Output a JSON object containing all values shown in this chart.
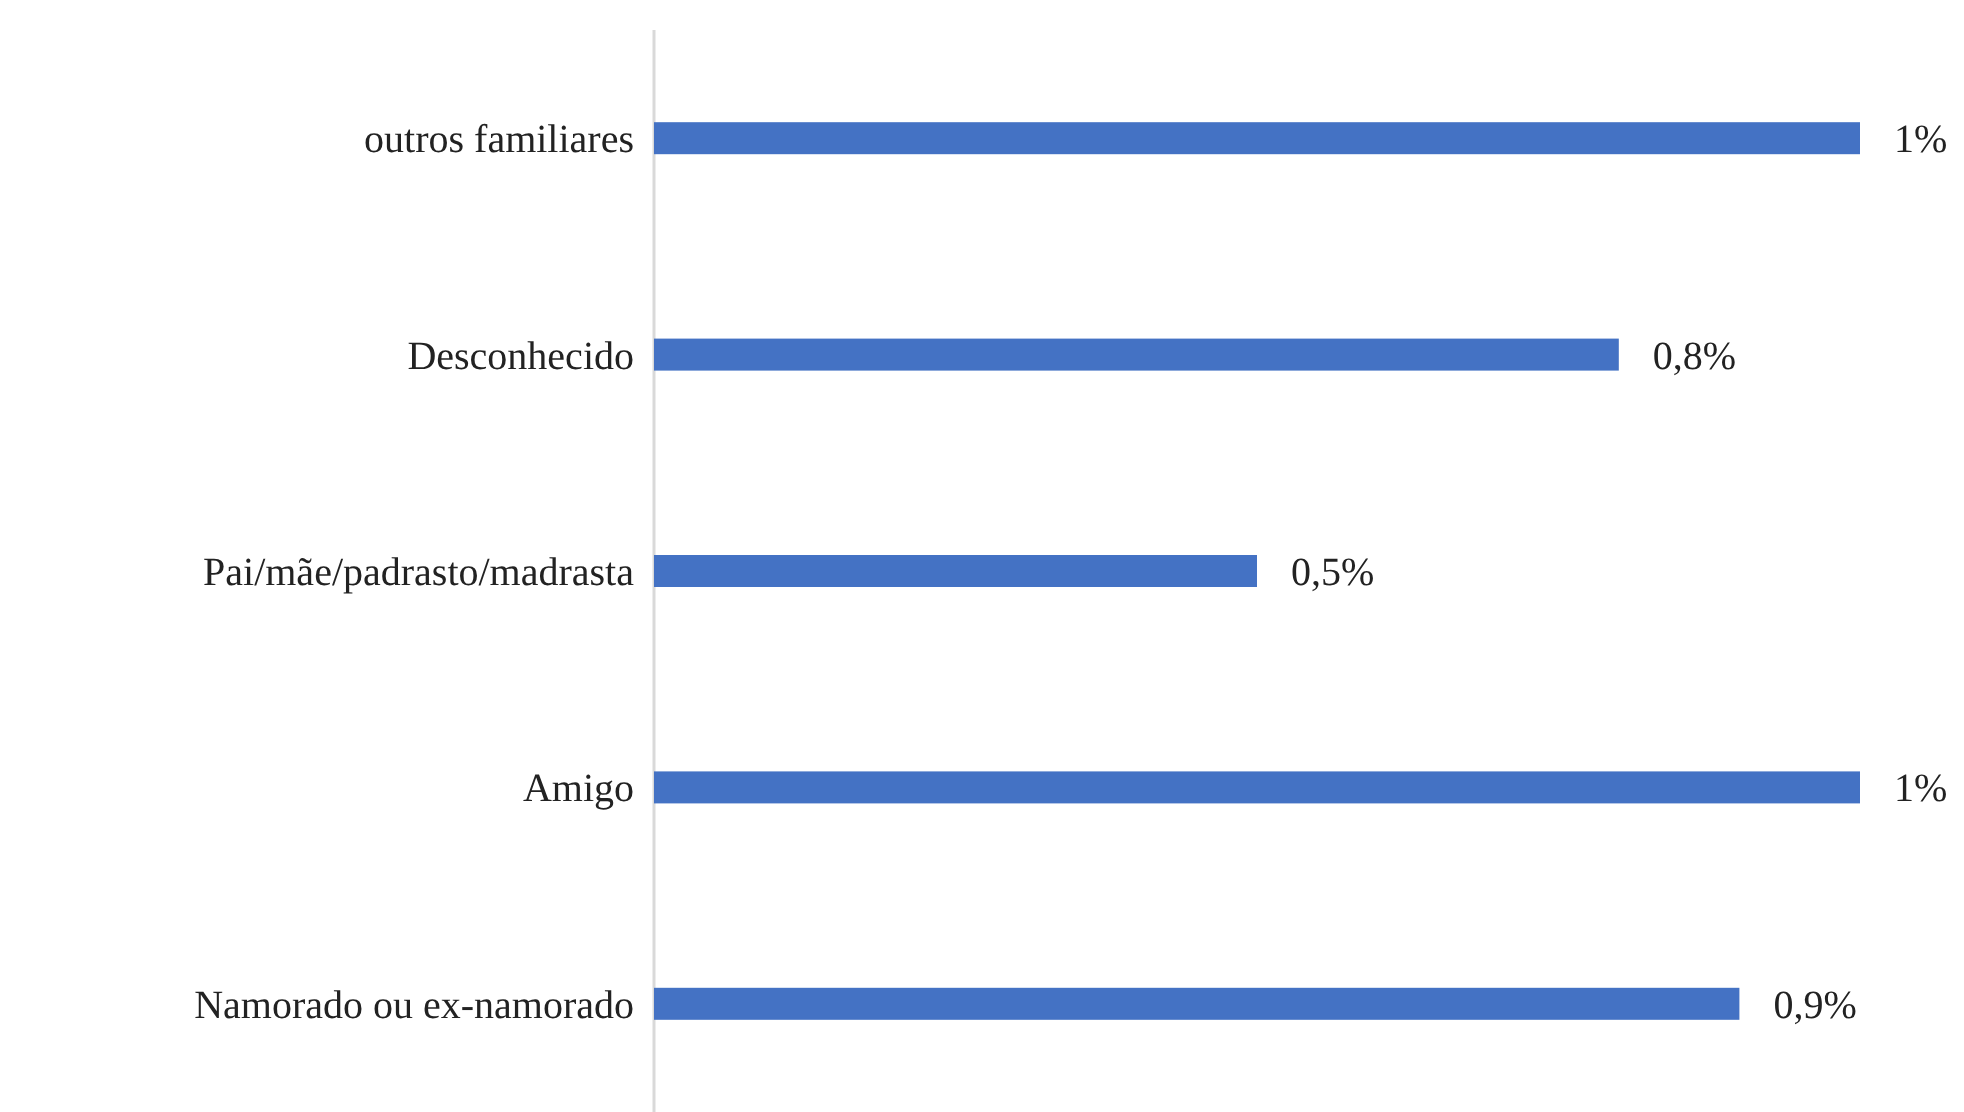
{
  "chart_data": {
    "type": "bar",
    "orientation": "horizontal",
    "categories": [
      "outros familiares",
      "Desconhecido",
      "Pai/mãe/padrasto/madrasta",
      "Amigo",
      "Namorado ou ex-namorado"
    ],
    "values": [
      1,
      0.8,
      0.5,
      1,
      0.9
    ],
    "value_labels": [
      "1%",
      "0,8%",
      "0,5%",
      "1%",
      "0,9%"
    ],
    "color": "#4472c4"
  }
}
